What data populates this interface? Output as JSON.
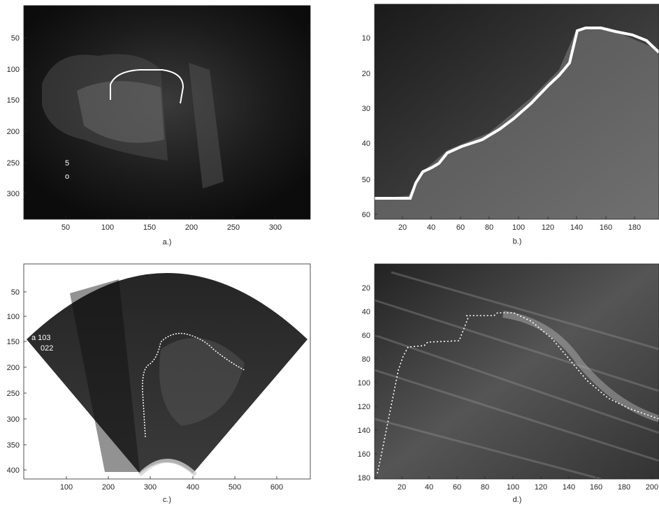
{
  "panels": [
    {
      "id": "a",
      "caption": "a.)",
      "xticks": [
        "50",
        "100",
        "150",
        "200",
        "250",
        "300"
      ],
      "yticks": [
        "50",
        "100",
        "150",
        "200",
        "250",
        "300"
      ],
      "annotations": [
        "5",
        "o"
      ]
    },
    {
      "id": "b",
      "caption": "b.)",
      "xticks": [
        "20",
        "40",
        "60",
        "80",
        "100",
        "120",
        "140",
        "160",
        "180"
      ],
      "yticks": [
        "10",
        "20",
        "30",
        "40",
        "50",
        "60"
      ]
    },
    {
      "id": "c",
      "caption": "c.)",
      "xticks": [
        "100",
        "200",
        "300",
        "400",
        "500",
        "600"
      ],
      "yticks": [
        "50",
        "100",
        "150",
        "200",
        "250",
        "300",
        "350",
        "400"
      ],
      "annotations": [
        "a 103",
        "022"
      ]
    },
    {
      "id": "d",
      "caption": "d.)",
      "xticks": [
        "20",
        "40",
        "60",
        "80",
        "100",
        "120",
        "140",
        "160",
        "180",
        "200"
      ],
      "yticks": [
        "20",
        "40",
        "60",
        "80",
        "100",
        "120",
        "140",
        "160",
        "180"
      ]
    }
  ],
  "colors": {
    "image_dark": "#0d0d0d",
    "image_mid": "#6a6a6a",
    "contour": "#ffffff",
    "axis": "#262626"
  }
}
